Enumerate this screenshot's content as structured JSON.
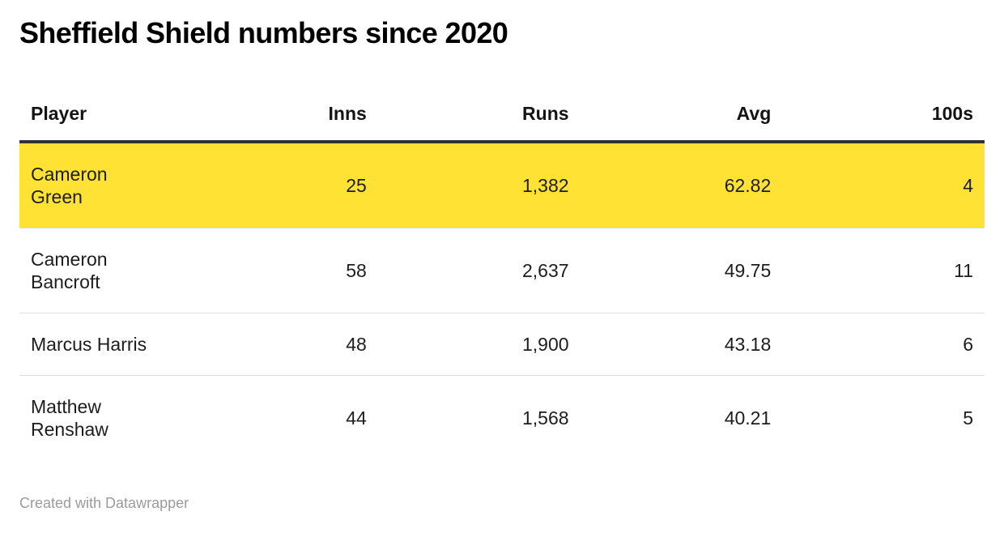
{
  "title": "Sheffield Shield numbers since 2020",
  "table": {
    "columns": {
      "player": "Player",
      "inns": "Inns",
      "runs": "Runs",
      "avg": "Avg",
      "hundreds": "100s"
    },
    "rows": [
      {
        "player": "Cameron\nGreen",
        "inns": "25",
        "runs": "1,382",
        "avg": "62.82",
        "hundreds": "4",
        "highlighted": true
      },
      {
        "player": "Cameron\nBancroft",
        "inns": "58",
        "runs": "2,637",
        "avg": "49.75",
        "hundreds": "11",
        "highlighted": false
      },
      {
        "player": "Marcus Harris",
        "inns": "48",
        "runs": "1,900",
        "avg": "43.18",
        "hundreds": "6",
        "highlighted": false
      },
      {
        "player": "Matthew\nRenshaw",
        "inns": "44",
        "runs": "1,568",
        "avg": "40.21",
        "hundreds": "5",
        "highlighted": false
      }
    ]
  },
  "footer": {
    "attribution": "Created with Datawrapper"
  },
  "colors": {
    "highlight_row": "#ffe234",
    "header_border": "#333333",
    "row_divider": "#dddddd",
    "body_text": "#1d1d1d",
    "footer_text": "#9b9b9b"
  },
  "chart_data": {
    "type": "table",
    "title": "Sheffield Shield numbers since 2020",
    "columns": [
      "Player",
      "Inns",
      "Runs",
      "Avg",
      "100s"
    ],
    "rows": [
      [
        "Cameron Green",
        25,
        1382,
        62.82,
        4
      ],
      [
        "Cameron Bancroft",
        58,
        2637,
        49.75,
        11
      ],
      [
        "Marcus Harris",
        48,
        1900,
        43.18,
        6
      ],
      [
        "Matthew Renshaw",
        44,
        1568,
        40.21,
        5
      ]
    ],
    "highlighted_row": "Cameron Green",
    "layout_hints": {
      "numeric_columns_right_aligned": true,
      "highlight_color": "#ffe234"
    }
  }
}
